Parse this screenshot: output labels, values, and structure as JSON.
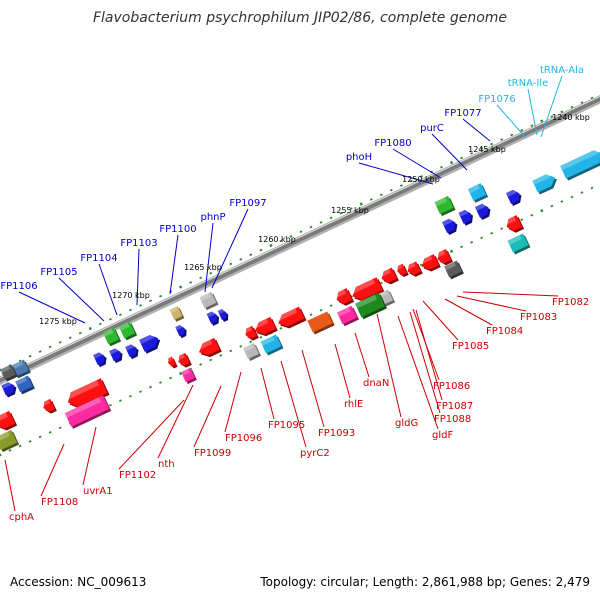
{
  "header": {
    "title": "Flavobacterium psychrophilum JIP02/86, complete genome"
  },
  "footer": {
    "accession": "Accession: NC_009613",
    "summary": "Topology: circular; Length: 2,861,988 bp; Genes: 2,479"
  },
  "colors": {
    "backbone": "#8a8a8a",
    "label_upper": "#0000cc",
    "label_lower": "#cc0000",
    "label_rna": "#22b4e6",
    "tick": "#2e8b2e"
  },
  "scale_labels": [
    {
      "text": "1240 kbp",
      "pos": 1240
    },
    {
      "text": "1245 kbp",
      "pos": 1245
    },
    {
      "text": "1250 kbp",
      "pos": 1250
    },
    {
      "text": "1255 kbp",
      "pos": 1255
    },
    {
      "text": "1260 kbp",
      "pos": 1260
    },
    {
      "text": "1265 kbp",
      "pos": 1265
    },
    {
      "text": "1270 kbp",
      "pos": 1270
    },
    {
      "text": "1275 kbp",
      "pos": 1275
    }
  ],
  "upper_labels": [
    {
      "text": "tRNA-Ala",
      "type": "rna"
    },
    {
      "text": "tRNA-Ile",
      "type": "rna"
    },
    {
      "text": "FP1076",
      "type": "rna"
    },
    {
      "text": "FP1077",
      "type": "gene"
    },
    {
      "text": "purC",
      "type": "gene"
    },
    {
      "text": "FP1080",
      "type": "gene"
    },
    {
      "text": "phoH",
      "type": "gene"
    },
    {
      "text": "FP1097",
      "type": "gene"
    },
    {
      "text": "phnP",
      "type": "gene"
    },
    {
      "text": "FP1100",
      "type": "gene"
    },
    {
      "text": "FP1103",
      "type": "gene"
    },
    {
      "text": "FP1104",
      "type": "gene"
    },
    {
      "text": "FP1105",
      "type": "gene"
    },
    {
      "text": "FP1106",
      "type": "gene"
    }
  ],
  "lower_labels": [
    {
      "text": "FP1082"
    },
    {
      "text": "FP1083"
    },
    {
      "text": "FP1084"
    },
    {
      "text": "FP1085"
    },
    {
      "text": "FP1086"
    },
    {
      "text": "FP1087"
    },
    {
      "text": "FP1088"
    },
    {
      "text": "gldF"
    },
    {
      "text": "gldG"
    },
    {
      "text": "dnaN"
    },
    {
      "text": "rhlE"
    },
    {
      "text": "FP1093"
    },
    {
      "text": "pyrC2"
    },
    {
      "text": "FP1095"
    },
    {
      "text": "FP1096"
    },
    {
      "text": "FP1099"
    },
    {
      "text": "nth"
    },
    {
      "text": "FP1102"
    },
    {
      "text": "uvrA1"
    },
    {
      "text": "FP1108"
    },
    {
      "text": "cphA"
    }
  ]
}
